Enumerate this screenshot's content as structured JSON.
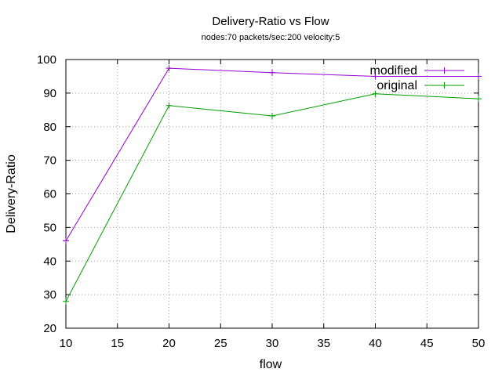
{
  "chart_data": {
    "type": "line",
    "title": "Delivery-Ratio vs Flow",
    "subtitle": "nodes:70  packets/sec:200  velocity:5",
    "xlabel": "flow",
    "ylabel": "Delivery-Ratio",
    "xlim": [
      10,
      50
    ],
    "ylim": [
      20,
      100
    ],
    "xticks": [
      10,
      15,
      20,
      25,
      30,
      35,
      40,
      45,
      50
    ],
    "yticks": [
      20,
      30,
      40,
      50,
      60,
      70,
      80,
      90,
      100
    ],
    "grid": true,
    "legend_position": "top-right",
    "series": [
      {
        "name": "modified",
        "color": "#9400d3",
        "points": [
          [
            10,
            46
          ],
          [
            20,
            97.4
          ],
          [
            30,
            96.1
          ],
          [
            40,
            95
          ],
          [
            50,
            95
          ]
        ]
      },
      {
        "name": "original",
        "color": "#009e00",
        "points": [
          [
            10,
            28
          ],
          [
            20,
            86.3
          ],
          [
            30,
            83.2
          ],
          [
            40,
            89.8
          ],
          [
            50,
            88.3
          ]
        ]
      }
    ]
  }
}
